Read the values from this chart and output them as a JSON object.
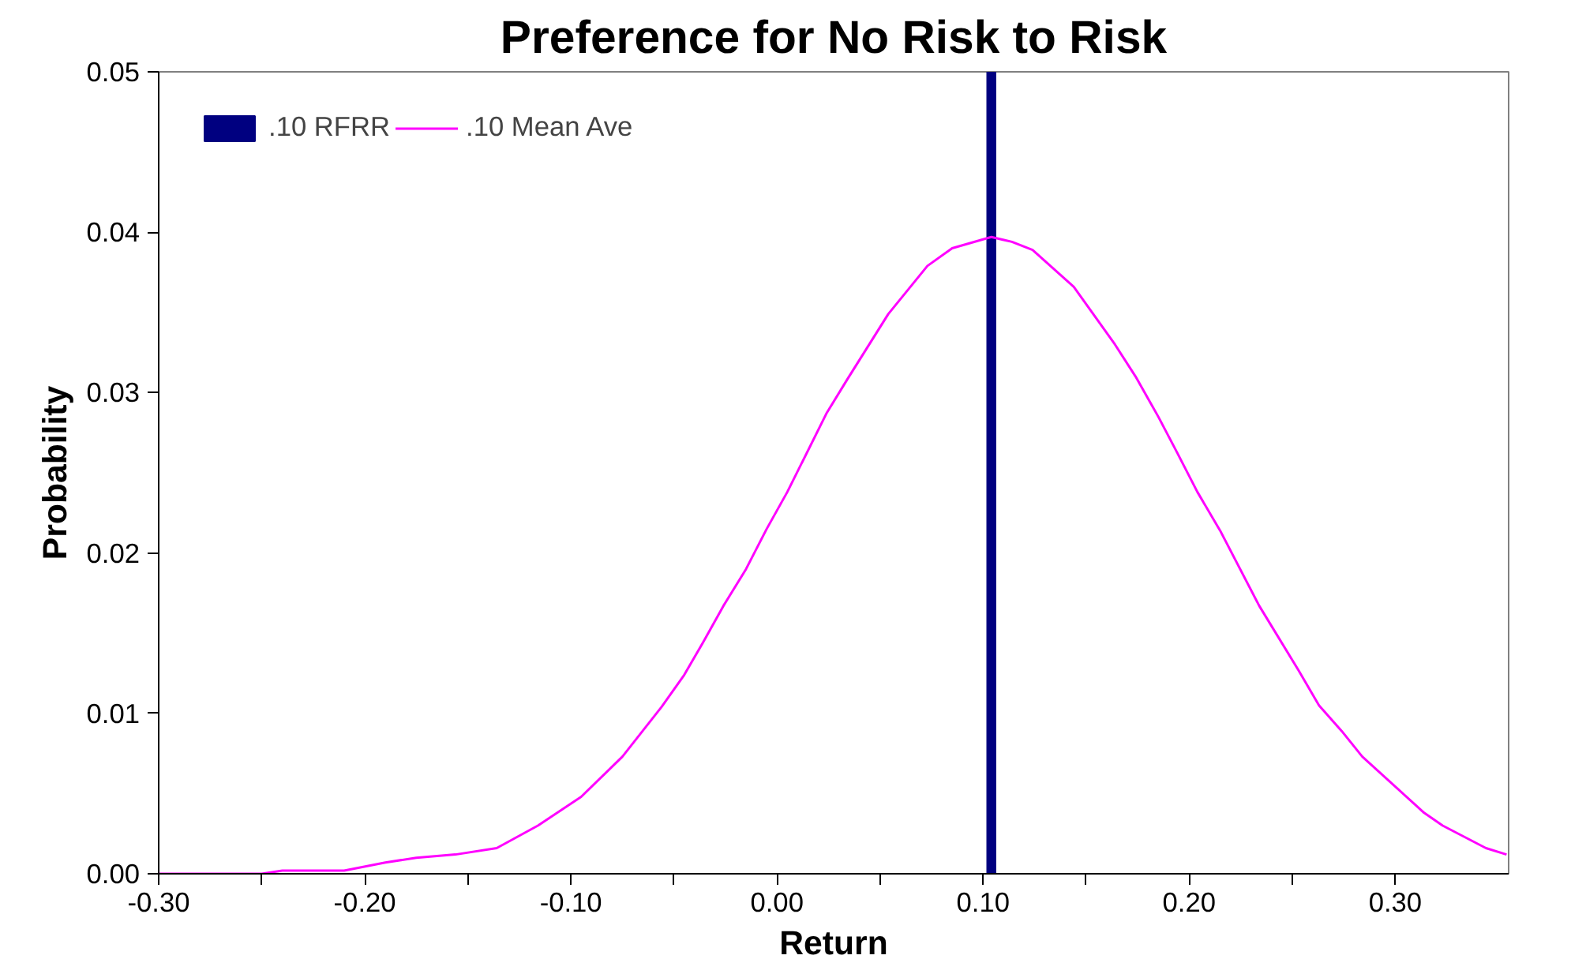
{
  "chart_data": {
    "type": "line",
    "title": "Preference for No Risk to Risk",
    "xlabel": "Return",
    "ylabel": "Probability",
    "xlim": [
      -0.3,
      0.355
    ],
    "ylim": [
      0,
      0.05
    ],
    "xticks": [
      {
        "value": -0.3,
        "label": "-0.30"
      },
      {
        "value": -0.25,
        "label": null
      },
      {
        "value": -0.2,
        "label": "-0.20"
      },
      {
        "value": -0.15,
        "label": null
      },
      {
        "value": -0.1,
        "label": "-0.10"
      },
      {
        "value": -0.05,
        "label": null
      },
      {
        "value": 0.0,
        "label": "0.00"
      },
      {
        "value": 0.05,
        "label": null
      },
      {
        "value": 0.1,
        "label": "0.10"
      },
      {
        "value": 0.15,
        "label": null
      },
      {
        "value": 0.2,
        "label": "0.20"
      },
      {
        "value": 0.25,
        "label": null
      },
      {
        "value": 0.3,
        "label": "0.30"
      }
    ],
    "yticks": [
      {
        "value": 0.0,
        "label": "0.00"
      },
      {
        "value": 0.01,
        "label": "0.01"
      },
      {
        "value": 0.02,
        "label": "0.02"
      },
      {
        "value": 0.03,
        "label": "0.03"
      },
      {
        "value": 0.04,
        "label": "0.04"
      },
      {
        "value": 0.05,
        "label": "0.05"
      }
    ],
    "grid": false,
    "legend": "top left",
    "series": [
      {
        "name": ".10 RFRR",
        "type": "bar",
        "color": "#000080",
        "x": [
          0.104
        ],
        "values": [
          0.05
        ]
      },
      {
        "name": ".10 Mean Ave",
        "color": "#ff00ff",
        "x": [
          -0.3,
          -0.25,
          -0.24,
          -0.21,
          -0.19,
          -0.175,
          -0.156,
          -0.136,
          -0.116,
          -0.095,
          -0.075,
          -0.056,
          -0.045,
          -0.036,
          -0.026,
          -0.015,
          -0.005,
          0.005,
          0.024,
          0.034,
          0.054,
          0.073,
          0.085,
          0.104,
          0.114,
          0.124,
          0.144,
          0.164,
          0.174,
          0.185,
          0.194,
          0.204,
          0.215,
          0.234,
          0.253,
          0.263,
          0.274,
          0.284,
          0.314,
          0.323,
          0.344,
          0.354
        ],
        "values": [
          0.0,
          0.0,
          0.0002,
          0.0002,
          0.0007,
          0.001,
          0.0012,
          0.0016,
          0.003,
          0.0048,
          0.0073,
          0.0104,
          0.0124,
          0.0144,
          0.0167,
          0.019,
          0.0215,
          0.0238,
          0.0287,
          0.0308,
          0.0349,
          0.0379,
          0.039,
          0.0397,
          0.0394,
          0.0389,
          0.0366,
          0.033,
          0.031,
          0.0285,
          0.0263,
          0.0238,
          0.0214,
          0.0167,
          0.0127,
          0.0105,
          0.0089,
          0.0073,
          0.0038,
          0.003,
          0.0016,
          0.0012
        ]
      }
    ]
  }
}
